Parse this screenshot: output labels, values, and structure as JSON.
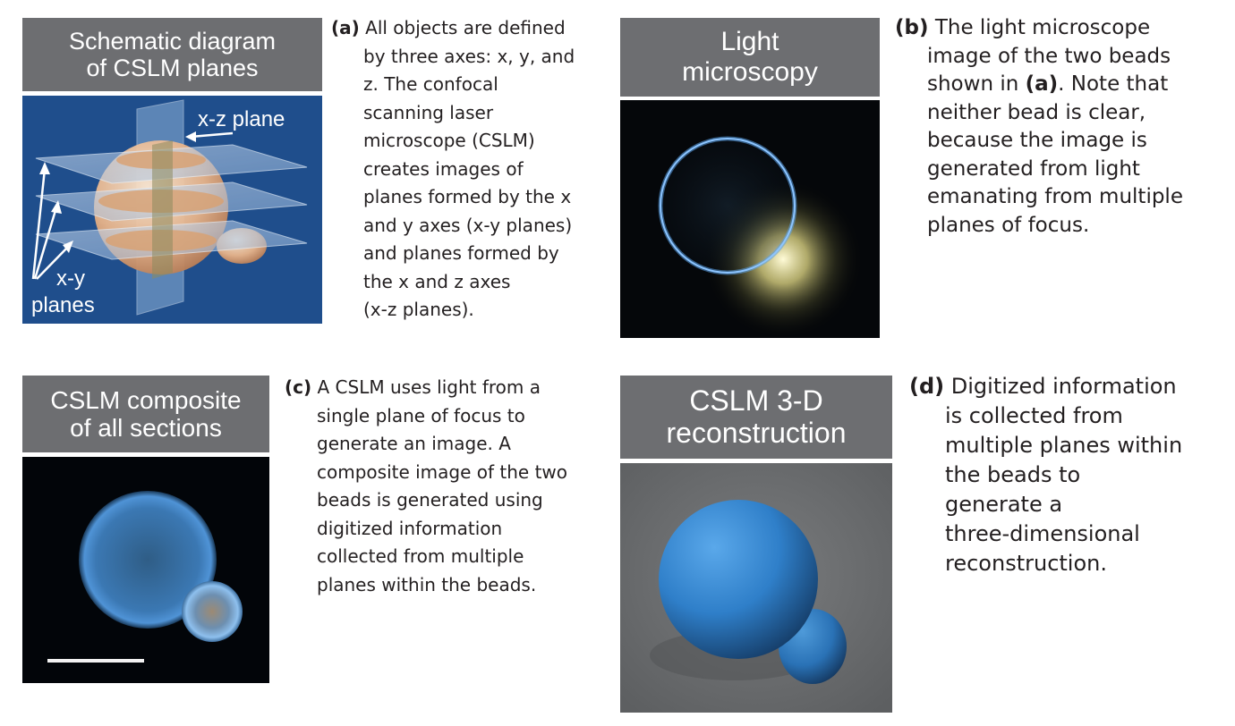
{
  "panel_a": {
    "header": [
      "Schematic diagram",
      "of CSLM planes"
    ],
    "label_xz": "x-z plane",
    "label_xy": [
      "x-y",
      "planes"
    ],
    "caption_label": "(a)",
    "caption_lines": [
      "All objects are defined",
      "by three axes: x, y, and",
      "z. The confocal",
      "scanning laser",
      "microscope (CSLM)",
      "creates images of",
      "planes formed by the x",
      "and y axes (x-y planes)",
      "and planes formed by",
      "the x and z axes",
      "(x-z planes)."
    ]
  },
  "panel_b": {
    "header": [
      "Light",
      "microscopy"
    ],
    "caption_label": "(b)",
    "caption_first": "The light microscope",
    "caption_l2_pre": "image of the two beads",
    "caption_l3_pre": "shown in ",
    "caption_l3_bold": "(a)",
    "caption_l3_post": ". Note that",
    "caption_rest": [
      "neither bead is clear,",
      "because the image is",
      "generated from light",
      "emanating from multiple",
      "planes of focus."
    ]
  },
  "panel_c": {
    "header": [
      "CSLM composite",
      "of all sections"
    ],
    "caption_label": "(c)",
    "caption_lines": [
      "A CSLM uses light from a",
      "single plane of focus to",
      "generate an image. A",
      "composite image of the two",
      "beads is generated using",
      "digitized information",
      "collected from multiple",
      "planes within the beads."
    ]
  },
  "panel_d": {
    "header": [
      "CSLM 3-D",
      "reconstruction"
    ],
    "caption_label": "(d)",
    "caption_lines": [
      "Digitized information",
      "is collected from",
      "multiple planes within",
      "the beads to",
      "generate a",
      "three-dimensional",
      "reconstruction."
    ]
  },
  "colors": {
    "header_bg": "#6d6e71",
    "schematic_bg": "#1f4e8c",
    "bead_blue": "#4a8fd6",
    "glow_yellow": "#fff6c0"
  }
}
